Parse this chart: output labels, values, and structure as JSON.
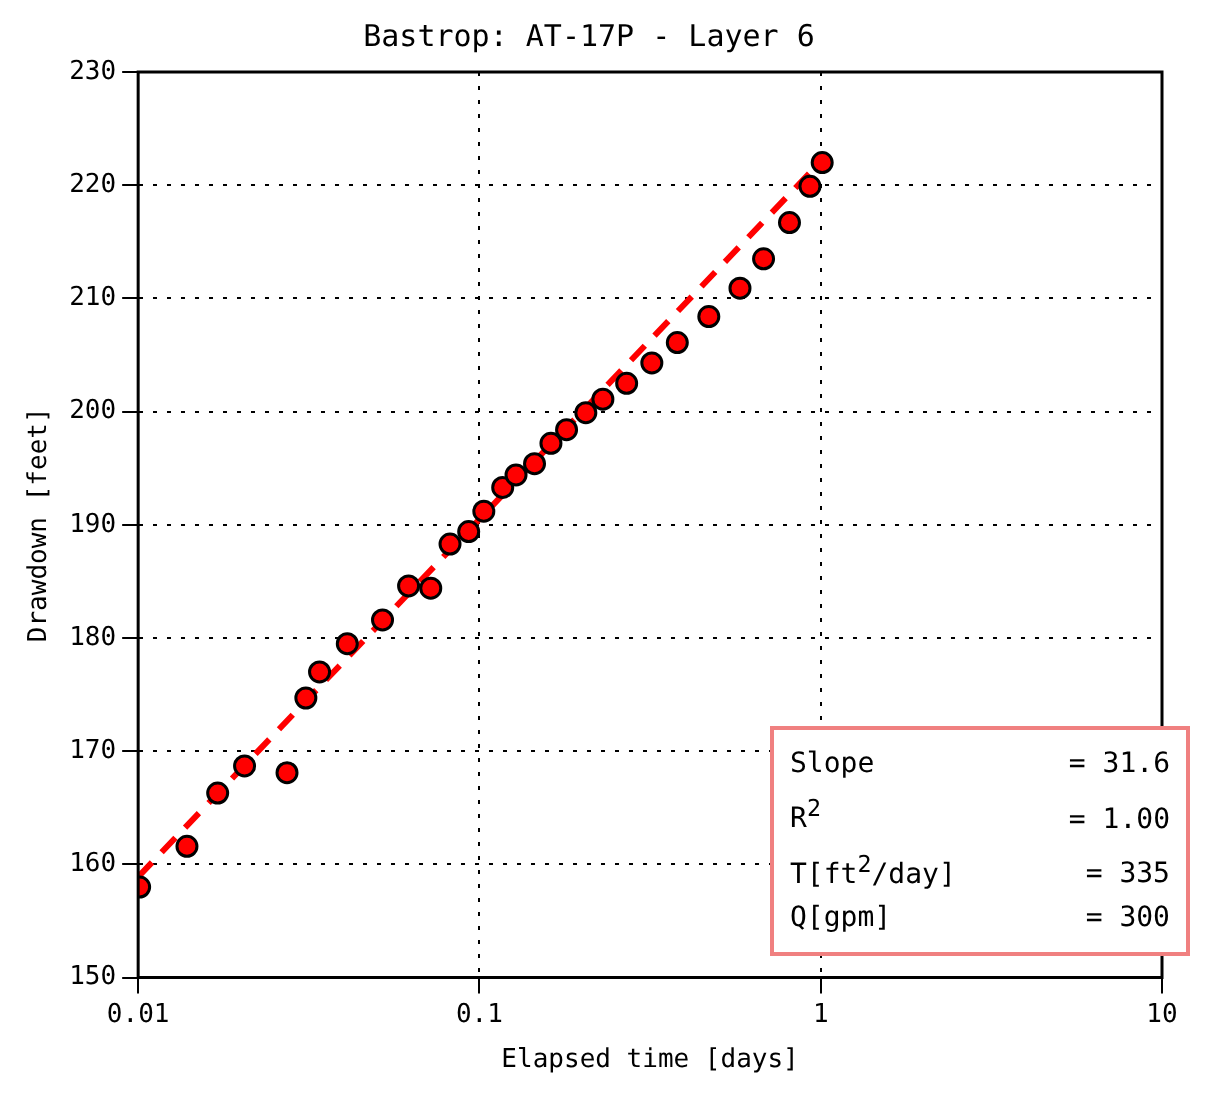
{
  "chart_data": {
    "type": "scatter",
    "title": "Bastrop: AT-17P - Layer 6",
    "xlabel": "Elapsed time [days]",
    "ylabel": "Drawdown [feet]",
    "log": "x",
    "grid": true,
    "legend": false,
    "marker": "circle",
    "xlim": [
      0.01,
      10
    ],
    "xticks": [
      0.01,
      0.1,
      1,
      10
    ],
    "ylim": [
      150,
      230
    ],
    "yticks": [
      150,
      160,
      170,
      180,
      190,
      200,
      210,
      220,
      230
    ],
    "series": [
      {
        "color": "#ff0000",
        "x": [
          0.0101,
          0.0139,
          0.0171,
          0.0205,
          0.0273,
          0.031,
          0.034,
          0.041,
          0.052,
          0.062,
          0.072,
          0.082,
          0.093,
          0.103,
          0.117,
          0.128,
          0.145,
          0.162,
          0.18,
          0.205,
          0.23,
          0.27,
          0.32,
          0.38,
          0.47,
          0.58,
          0.68,
          0.81,
          0.93,
          1.01
        ],
        "values": [
          158.0,
          161.6,
          166.3,
          168.7,
          168.1,
          174.7,
          177.0,
          179.5,
          181.6,
          184.6,
          184.4,
          188.3,
          189.4,
          191.2,
          193.3,
          194.4,
          195.4,
          197.2,
          198.4,
          199.9,
          201.1,
          202.5,
          204.3,
          206.1,
          208.4,
          210.9,
          213.5,
          216.7,
          219.9,
          222.0
        ]
      },
      {
        "type": "line",
        "color": "#ff0000",
        "line_style": "dashed",
        "marker": "none",
        "x": [
          0.01,
          1
        ],
        "values": [
          158.9,
          222.1
        ]
      }
    ],
    "annotations": [
      "Slope = 31.6",
      "R$^{2}$ = 1.00",
      "T[ft$^{2}$/day] = 335",
      "Q[gpm] = 300"
    ]
  }
}
